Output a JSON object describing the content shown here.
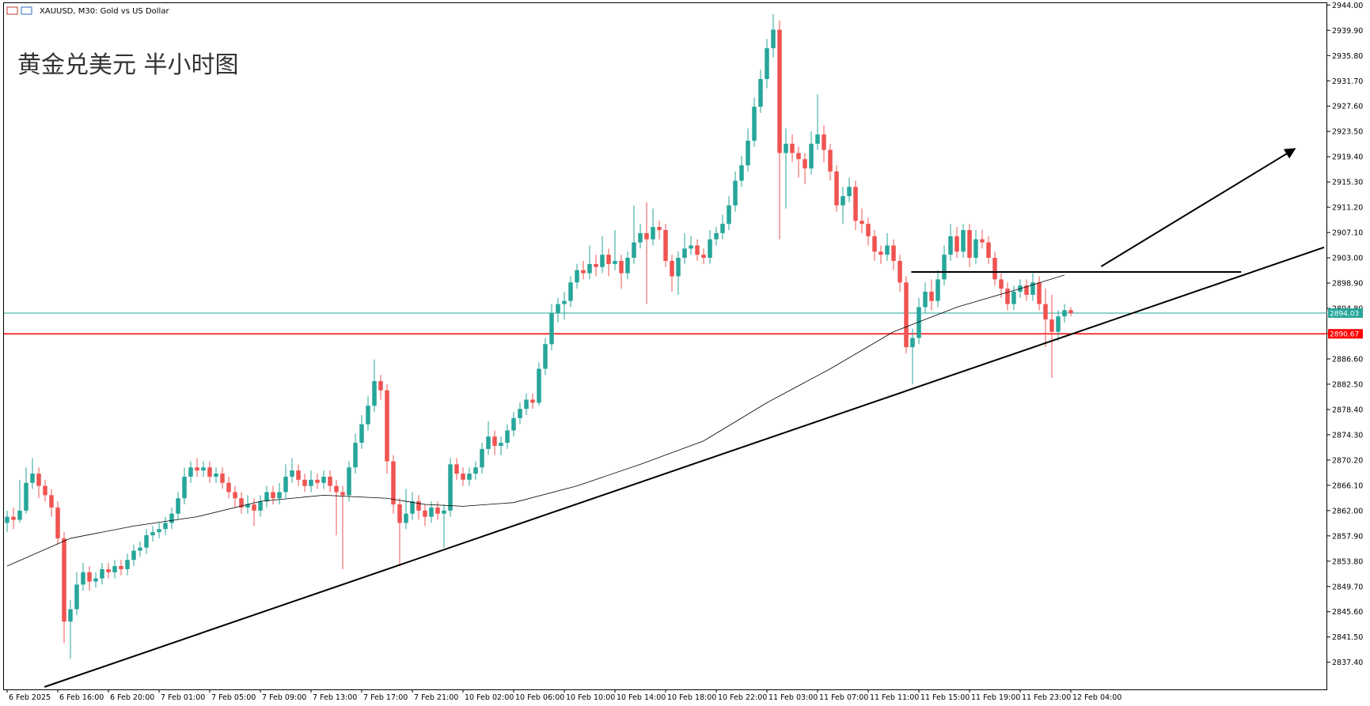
{
  "chart_data": {
    "type": "candlestick",
    "title": "XAUUSD, M30:  Gold vs US Dollar",
    "annotation": "黄金兑美元 半小时图",
    "up_color": "#26a69a",
    "down_color": "#ef5350",
    "ylim": [
      2833.0,
      2944.3
    ],
    "xlim": [
      -0.5,
      208.5
    ],
    "yticks": [
      {
        "value": 2944,
        "label": "2944.00"
      },
      {
        "value": 2939.9,
        "label": "2939.90"
      },
      {
        "value": 2935.8,
        "label": "2935.80"
      },
      {
        "value": 2931.7,
        "label": "2931.70"
      },
      {
        "value": 2927.6,
        "label": "2927.60"
      },
      {
        "value": 2923.5,
        "label": "2923.50"
      },
      {
        "value": 2919.4,
        "label": "2919.40"
      },
      {
        "value": 2915.3,
        "label": "2915.30"
      },
      {
        "value": 2911.2,
        "label": "2911.20"
      },
      {
        "value": 2907.1,
        "label": "2907.10"
      },
      {
        "value": 2903,
        "label": "2903.00"
      },
      {
        "value": 2898.9,
        "label": "2898.90"
      },
      {
        "value": 2894.8,
        "label": "2894.80"
      },
      {
        "value": 2890.7,
        "label": "2890.70"
      },
      {
        "value": 2886.6,
        "label": "2886.60"
      },
      {
        "value": 2882.5,
        "label": "2882.50"
      },
      {
        "value": 2878.4,
        "label": "2878.40"
      },
      {
        "value": 2874.3,
        "label": "2874.30"
      },
      {
        "value": 2870.2,
        "label": "2870.20"
      },
      {
        "value": 2866.1,
        "label": "2866.10"
      },
      {
        "value": 2862,
        "label": "2862.00"
      },
      {
        "value": 2857.9,
        "label": "2857.90"
      },
      {
        "value": 2853.8,
        "label": "2853.80"
      },
      {
        "value": 2849.7,
        "label": "2849.70"
      },
      {
        "value": 2845.6,
        "label": "2845.60"
      },
      {
        "value": 2841.5,
        "label": "2841.50"
      },
      {
        "value": 2837.4,
        "label": "2837.40"
      }
    ],
    "xticks": [
      {
        "value": 0,
        "label": "6 Feb 2025"
      },
      {
        "value": 8,
        "label": "6 Feb 16:00"
      },
      {
        "value": 16,
        "label": "6 Feb 20:00"
      },
      {
        "value": 24,
        "label": "7 Feb 01:00"
      },
      {
        "value": 32,
        "label": "7 Feb 05:00"
      },
      {
        "value": 40,
        "label": "7 Feb 09:00"
      },
      {
        "value": 48,
        "label": "7 Feb 13:00"
      },
      {
        "value": 56,
        "label": "7 Feb 17:00"
      },
      {
        "value": 64,
        "label": "7 Feb 21:00"
      },
      {
        "value": 72,
        "label": "10 Feb 02:00"
      },
      {
        "value": 80,
        "label": "10 Feb 06:00"
      },
      {
        "value": 88,
        "label": "10 Feb 10:00"
      },
      {
        "value": 96,
        "label": "10 Feb 14:00"
      },
      {
        "value": 104,
        "label": "10 Feb 18:00"
      },
      {
        "value": 112,
        "label": "10 Feb 22:00"
      },
      {
        "value": 120,
        "label": "11 Feb 03:00"
      },
      {
        "value": 128,
        "label": "11 Feb 07:00"
      },
      {
        "value": 136,
        "label": "11 Feb 11:00"
      },
      {
        "value": 144,
        "label": "11 Feb 15:00"
      },
      {
        "value": 152,
        "label": "11 Feb 19:00"
      },
      {
        "value": 160,
        "label": "11 Feb 23:00"
      },
      {
        "value": 168,
        "label": "12 Feb 04:00"
      }
    ],
    "candles": [
      [
        2860.0,
        2862.0,
        2858.5,
        2861.0
      ],
      [
        2861.0,
        2862.5,
        2859.0,
        2860.5
      ],
      [
        2860.5,
        2867.0,
        2860.0,
        2862.0
      ],
      [
        2862.0,
        2869.0,
        2861.5,
        2866.5
      ],
      [
        2866.5,
        2870.5,
        2865.5,
        2868.0
      ],
      [
        2868.0,
        2869.0,
        2864.0,
        2866.0
      ],
      [
        2866.0,
        2867.0,
        2863.5,
        2864.5
      ],
      [
        2864.5,
        2865.5,
        2861.0,
        2862.5
      ],
      [
        2862.5,
        2863.5,
        2856.5,
        2857.5
      ],
      [
        2857.5,
        2858.5,
        2840.5,
        2844.0
      ],
      [
        2844.0,
        2847.5,
        2838.0,
        2846.0
      ],
      [
        2846.0,
        2852.0,
        2845.0,
        2850.0
      ],
      [
        2850.0,
        2853.5,
        2849.0,
        2852.0
      ],
      [
        2852.0,
        2853.0,
        2849.0,
        2850.5
      ],
      [
        2850.5,
        2852.0,
        2849.5,
        2851.0
      ],
      [
        2851.0,
        2853.5,
        2850.0,
        2852.5
      ],
      [
        2852.5,
        2853.5,
        2851.0,
        2852.0
      ],
      [
        2852.0,
        2854.0,
        2851.0,
        2853.0
      ],
      [
        2853.0,
        2854.0,
        2851.5,
        2852.5
      ],
      [
        2852.5,
        2855.0,
        2851.5,
        2854.0
      ],
      [
        2854.0,
        2856.5,
        2853.0,
        2855.5
      ],
      [
        2855.5,
        2857.0,
        2854.5,
        2856.0
      ],
      [
        2856.0,
        2859.0,
        2855.0,
        2858.0
      ],
      [
        2858.0,
        2859.5,
        2857.0,
        2858.5
      ],
      [
        2858.5,
        2860.0,
        2857.5,
        2859.0
      ],
      [
        2859.0,
        2861.0,
        2858.0,
        2860.0
      ],
      [
        2860.0,
        2862.5,
        2859.0,
        2861.5
      ],
      [
        2861.5,
        2865.0,
        2860.5,
        2864.0
      ],
      [
        2864.0,
        2869.0,
        2863.0,
        2867.5
      ],
      [
        2867.5,
        2870.0,
        2866.5,
        2869.0
      ],
      [
        2869.0,
        2870.5,
        2867.5,
        2868.5
      ],
      [
        2868.5,
        2870.0,
        2867.5,
        2869.0
      ],
      [
        2869.0,
        2870.0,
        2866.5,
        2867.5
      ],
      [
        2867.5,
        2869.0,
        2866.5,
        2868.0
      ],
      [
        2868.0,
        2869.0,
        2865.5,
        2866.5
      ],
      [
        2866.5,
        2867.5,
        2864.0,
        2865.0
      ],
      [
        2865.0,
        2866.0,
        2862.5,
        2864.0
      ],
      [
        2864.0,
        2865.0,
        2861.5,
        2862.5
      ],
      [
        2862.5,
        2864.5,
        2861.5,
        2863.0
      ],
      [
        2863.0,
        2864.0,
        2859.5,
        2862.0
      ],
      [
        2862.0,
        2864.5,
        2861.0,
        2863.5
      ],
      [
        2863.5,
        2866.0,
        2862.5,
        2865.0
      ],
      [
        2865.0,
        2866.0,
        2863.0,
        2864.0
      ],
      [
        2864.0,
        2866.5,
        2863.0,
        2865.0
      ],
      [
        2865.0,
        2869.5,
        2864.0,
        2867.5
      ],
      [
        2867.5,
        2870.5,
        2866.5,
        2868.5
      ],
      [
        2868.5,
        2869.5,
        2866.0,
        2867.0
      ],
      [
        2867.0,
        2868.0,
        2865.0,
        2866.0
      ],
      [
        2866.0,
        2868.5,
        2865.0,
        2867.0
      ],
      [
        2867.0,
        2868.0,
        2865.5,
        2866.5
      ],
      [
        2866.5,
        2868.5,
        2865.5,
        2867.5
      ],
      [
        2867.5,
        2868.5,
        2865.0,
        2866.0
      ],
      [
        2866.0,
        2867.0,
        2858.0,
        2865.0
      ],
      [
        2865.0,
        2866.0,
        2852.5,
        2864.5
      ],
      [
        2864.5,
        2870.0,
        2863.5,
        2869.0
      ],
      [
        2869.0,
        2874.5,
        2868.0,
        2873.0
      ],
      [
        2873.0,
        2877.5,
        2872.0,
        2876.0
      ],
      [
        2876.0,
        2880.5,
        2875.0,
        2879.0
      ],
      [
        2879.0,
        2886.5,
        2878.0,
        2883.0
      ],
      [
        2883.0,
        2884.0,
        2880.0,
        2881.5
      ],
      [
        2881.5,
        2882.5,
        2868.0,
        2870.0
      ],
      [
        2870.0,
        2871.0,
        2861.5,
        2863.0
      ],
      [
        2863.0,
        2864.0,
        2853.0,
        2860.0
      ],
      [
        2860.0,
        2865.5,
        2859.0,
        2861.5
      ],
      [
        2861.5,
        2865.0,
        2860.5,
        2863.5
      ],
      [
        2863.5,
        2864.5,
        2860.5,
        2862.0
      ],
      [
        2862.0,
        2863.0,
        2859.5,
        2861.0
      ],
      [
        2861.0,
        2863.5,
        2860.0,
        2862.5
      ],
      [
        2862.5,
        2863.5,
        2860.5,
        2861.5
      ],
      [
        2861.5,
        2863.0,
        2856.0,
        2862.0
      ],
      [
        2862.0,
        2870.5,
        2861.0,
        2869.5
      ],
      [
        2869.5,
        2870.5,
        2867.0,
        2868.0
      ],
      [
        2868.0,
        2869.0,
        2866.0,
        2867.0
      ],
      [
        2867.0,
        2869.0,
        2866.0,
        2868.0
      ],
      [
        2868.0,
        2870.0,
        2867.0,
        2869.0
      ],
      [
        2869.0,
        2873.0,
        2868.0,
        2872.0
      ],
      [
        2872.0,
        2876.5,
        2871.0,
        2874.0
      ],
      [
        2874.0,
        2875.0,
        2871.0,
        2872.5
      ],
      [
        2872.5,
        2874.0,
        2871.0,
        2873.0
      ],
      [
        2873.0,
        2876.0,
        2872.0,
        2875.0
      ],
      [
        2875.0,
        2878.0,
        2874.0,
        2877.0
      ],
      [
        2877.0,
        2879.5,
        2876.0,
        2878.5
      ],
      [
        2878.5,
        2881.0,
        2877.5,
        2880.0
      ],
      [
        2880.0,
        2881.0,
        2878.5,
        2879.5
      ],
      [
        2879.5,
        2886.0,
        2879.0,
        2885.0
      ],
      [
        2885.0,
        2890.0,
        2884.0,
        2889.0
      ],
      [
        2889.0,
        2895.5,
        2888.0,
        2894.0
      ],
      [
        2894.0,
        2896.5,
        2892.5,
        2895.5
      ],
      [
        2895.5,
        2897.5,
        2893.0,
        2896.0
      ],
      [
        2896.0,
        2900.0,
        2895.0,
        2899.0
      ],
      [
        2899.0,
        2902.0,
        2898.0,
        2901.0
      ],
      [
        2901.0,
        2902.5,
        2899.5,
        2900.5
      ],
      [
        2900.5,
        2905.0,
        2899.5,
        2902.0
      ],
      [
        2902.0,
        2903.5,
        2900.0,
        2901.5
      ],
      [
        2901.5,
        2906.5,
        2900.5,
        2903.5
      ],
      [
        2903.5,
        2904.5,
        2900.0,
        2902.0
      ],
      [
        2902.0,
        2907.5,
        2901.0,
        2902.5
      ],
      [
        2902.5,
        2903.5,
        2898.0,
        2900.5
      ],
      [
        2900.5,
        2904.0,
        2899.5,
        2903.0
      ],
      [
        2903.0,
        2911.5,
        2902.0,
        2905.5
      ],
      [
        2905.5,
        2908.5,
        2904.5,
        2907.0
      ],
      [
        2907.0,
        2912.0,
        2895.5,
        2906.0
      ],
      [
        2906.0,
        2911.0,
        2905.0,
        2908.0
      ],
      [
        2908.0,
        2909.0,
        2906.0,
        2907.5
      ],
      [
        2907.5,
        2908.5,
        2901.5,
        2902.5
      ],
      [
        2902.5,
        2903.5,
        2897.5,
        2900.0
      ],
      [
        2900.0,
        2904.0,
        2897.0,
        2903.0
      ],
      [
        2903.0,
        2907.0,
        2902.0,
        2904.5
      ],
      [
        2904.5,
        2906.5,
        2903.5,
        2905.0
      ],
      [
        2905.0,
        2906.0,
        2902.5,
        2903.5
      ],
      [
        2903.5,
        2904.5,
        2902.0,
        2903.0
      ],
      [
        2903.0,
        2907.5,
        2902.0,
        2906.0
      ],
      [
        2906.0,
        2908.0,
        2905.0,
        2907.0
      ],
      [
        2907.0,
        2910.0,
        2906.0,
        2908.5
      ],
      [
        2908.5,
        2913.0,
        2907.5,
        2911.5
      ],
      [
        2911.5,
        2917.0,
        2910.5,
        2915.5
      ],
      [
        2915.5,
        2919.5,
        2914.5,
        2918.0
      ],
      [
        2918.0,
        2924.0,
        2917.0,
        2922.0
      ],
      [
        2922.0,
        2929.0,
        2921.0,
        2927.5
      ],
      [
        2927.5,
        2933.5,
        2926.5,
        2932.0
      ],
      [
        2932.0,
        2938.5,
        2930.5,
        2937.0
      ],
      [
        2937.0,
        2942.5,
        2935.5,
        2940.0
      ],
      [
        2940.0,
        2941.5,
        2906.0,
        2920.0
      ],
      [
        2920.0,
        2924.0,
        2911.0,
        2921.5
      ],
      [
        2921.5,
        2923.0,
        2918.5,
        2920.0
      ],
      [
        2920.0,
        2921.0,
        2916.0,
        2919.0
      ],
      [
        2919.0,
        2920.0,
        2915.0,
        2917.5
      ],
      [
        2917.5,
        2923.5,
        2916.5,
        2921.5
      ],
      [
        2921.5,
        2929.5,
        2920.5,
        2923.0
      ],
      [
        2923.0,
        2924.5,
        2918.5,
        2920.5
      ],
      [
        2920.5,
        2921.5,
        2915.5,
        2917.0
      ],
      [
        2917.0,
        2918.0,
        2910.5,
        2911.5
      ],
      [
        2911.5,
        2914.5,
        2908.5,
        2913.0
      ],
      [
        2913.0,
        2916.0,
        2912.0,
        2914.5
      ],
      [
        2914.5,
        2915.5,
        2907.5,
        2909.0
      ],
      [
        2909.0,
        2911.0,
        2907.0,
        2908.5
      ],
      [
        2908.5,
        2909.5,
        2905.0,
        2906.5
      ],
      [
        2906.5,
        2907.5,
        2902.5,
        2904.0
      ],
      [
        2904.0,
        2905.0,
        2902.0,
        2903.5
      ],
      [
        2903.5,
        2907.0,
        2902.5,
        2905.0
      ],
      [
        2905.0,
        2906.0,
        2901.0,
        2902.5
      ],
      [
        2902.5,
        2903.5,
        2897.5,
        2899.0
      ],
      [
        2899.0,
        2900.0,
        2887.5,
        2888.5
      ],
      [
        2888.5,
        2891.5,
        2882.5,
        2890.0
      ],
      [
        2890.0,
        2896.5,
        2889.0,
        2895.0
      ],
      [
        2895.0,
        2899.0,
        2894.0,
        2897.5
      ],
      [
        2897.5,
        2899.5,
        2894.5,
        2896.0
      ],
      [
        2896.0,
        2901.0,
        2895.0,
        2899.5
      ],
      [
        2899.5,
        2905.0,
        2898.5,
        2903.5
      ],
      [
        2903.5,
        2908.5,
        2902.5,
        2906.5
      ],
      [
        2906.5,
        2908.0,
        2903.0,
        2904.0
      ],
      [
        2904.0,
        2908.5,
        2903.0,
        2907.5
      ],
      [
        2907.5,
        2908.5,
        2901.5,
        2903.0
      ],
      [
        2903.0,
        2907.5,
        2902.0,
        2906.0
      ],
      [
        2906.0,
        2907.5,
        2904.5,
        2905.5
      ],
      [
        2905.5,
        2906.5,
        2902.0,
        2903.0
      ],
      [
        2903.0,
        2904.0,
        2898.5,
        2899.5
      ],
      [
        2899.5,
        2900.5,
        2896.5,
        2898.0
      ],
      [
        2898.0,
        2899.0,
        2894.5,
        2895.5
      ],
      [
        2895.5,
        2898.5,
        2894.5,
        2897.5
      ],
      [
        2897.5,
        2899.5,
        2896.5,
        2898.5
      ],
      [
        2898.5,
        2899.5,
        2896.0,
        2897.0
      ],
      [
        2897.0,
        2900.5,
        2896.0,
        2899.0
      ],
      [
        2899.0,
        2900.0,
        2894.5,
        2895.5
      ],
      [
        2895.5,
        2898.0,
        2888.5,
        2893.0
      ],
      [
        2893.0,
        2897.0,
        2883.5,
        2891.0
      ],
      [
        2891.0,
        2894.5,
        2889.5,
        2893.5
      ],
      [
        2893.5,
        2895.5,
        2892.5,
        2894.5
      ],
      [
        2894.5,
        2895.0,
        2893.5,
        2894.03
      ]
    ],
    "moving_average": {
      "color": "#000000",
      "x": [
        0,
        10,
        20,
        30,
        40,
        50,
        60,
        66,
        72,
        80,
        90,
        100,
        110,
        120,
        130,
        140,
        150,
        160,
        167
      ],
      "values": [
        2853,
        2857.5,
        2859.5,
        2861,
        2863.5,
        2864.5,
        2864,
        2863,
        2862.7,
        2863.3,
        2866,
        2869.5,
        2873.3,
        2879.5,
        2885,
        2891,
        2895,
        2898,
        2900.2
      ]
    },
    "trendlines": [
      {
        "x": [
          5.9,
          208
        ],
        "y": [
          2833.4,
          2904.7
        ]
      },
      {
        "x": [
          142.8,
          194.9
        ],
        "y": [
          2900.7,
          2900.7
        ]
      }
    ],
    "arrow": {
      "x": [
        172.8,
        203.4
      ],
      "y": [
        2901.6,
        2920.7
      ]
    },
    "price_lines": [
      {
        "value": 2894.03,
        "color": "#26a69a"
      },
      {
        "value": 2890.67,
        "color": "#ff0000"
      }
    ]
  }
}
